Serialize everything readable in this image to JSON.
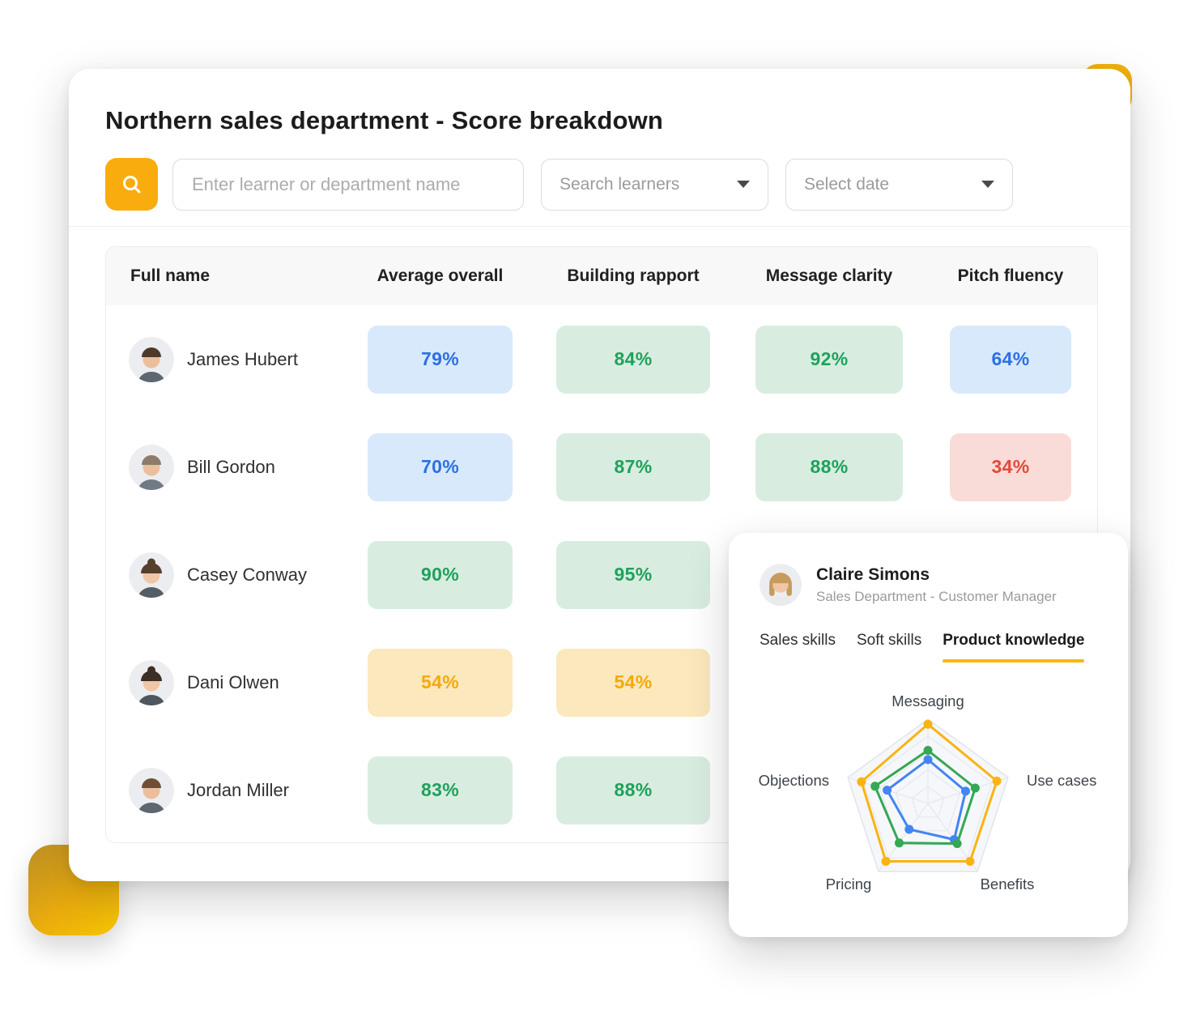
{
  "page": {
    "title": "Northern sales department - Score breakdown"
  },
  "toolbar": {
    "search_button_icon": "search-icon",
    "search_placeholder": "Enter learner or department name",
    "learners_dropdown_value": "Search learners",
    "date_dropdown_value": "Select date"
  },
  "colors": {
    "accent_yellow": "#F9AC0D",
    "tab_underline": "#FBB70F",
    "badge_tones": {
      "blue": {
        "bg": "#D8E9FB",
        "text": "#2B6FE4"
      },
      "green": {
        "bg": "#D8EDE0",
        "text": "#1FA15C"
      },
      "red": {
        "bg": "#F9DCD7",
        "text": "#E24A3B"
      },
      "yellow": {
        "bg": "#FBE8BC",
        "text": "#F4A90B"
      }
    }
  },
  "table": {
    "headers": [
      "Full name",
      "Average overall",
      "Building rapport",
      "Message clarity",
      "Pitch fluency"
    ],
    "rows": [
      {
        "name": "James Hubert",
        "avatar": {
          "style": "short",
          "hair": "#4E3A2B",
          "skin": "#EBBE9D",
          "shirt": "#5E6670"
        },
        "scores": [
          {
            "value": "79%",
            "tone": "blue"
          },
          {
            "value": "84%",
            "tone": "green"
          },
          {
            "value": "92%",
            "tone": "green"
          },
          {
            "value": "64%",
            "tone": "blue"
          }
        ]
      },
      {
        "name": "Bill Gordon",
        "avatar": {
          "style": "short",
          "hair": "#8C7B6B",
          "skin": "#EBBE9D",
          "shirt": "#717A84"
        },
        "scores": [
          {
            "value": "70%",
            "tone": "blue"
          },
          {
            "value": "87%",
            "tone": "green"
          },
          {
            "value": "88%",
            "tone": "green"
          },
          {
            "value": "34%",
            "tone": "red"
          }
        ]
      },
      {
        "name": "Casey Conway",
        "avatar": {
          "style": "bun",
          "hair": "#553F2F",
          "skin": "#F0C6A6",
          "shirt": "#555D66"
        },
        "scores": [
          {
            "value": "90%",
            "tone": "green"
          },
          {
            "value": "95%",
            "tone": "green"
          },
          null,
          null
        ]
      },
      {
        "name": "Dani Olwen",
        "avatar": {
          "style": "bun",
          "hair": "#3E2E28",
          "skin": "#F0C6A6",
          "shirt": "#4E565F"
        },
        "scores": [
          {
            "value": "54%",
            "tone": "yellow"
          },
          {
            "value": "54%",
            "tone": "yellow"
          },
          null,
          null
        ]
      },
      {
        "name": "Jordan Miller",
        "avatar": {
          "style": "short",
          "hair": "#6E4F35",
          "skin": "#EBBE9D",
          "shirt": "#5E6670"
        },
        "scores": [
          {
            "value": "83%",
            "tone": "green"
          },
          {
            "value": "88%",
            "tone": "green"
          },
          null,
          null
        ]
      }
    ]
  },
  "profile_card": {
    "name": "Claire Simons",
    "subtitle": "Sales Department - Customer Manager",
    "avatar": {
      "style": "long",
      "hair": "#C79B5C",
      "skin": "#F0C6A6",
      "shirt": "#E9EAEC"
    },
    "tabs": [
      {
        "label": "Sales skills",
        "active": false
      },
      {
        "label": "Soft skills",
        "active": false
      },
      {
        "label": "Product knowledge",
        "active": true
      }
    ]
  },
  "chart_data": {
    "type": "radar",
    "categories": [
      "Messaging",
      "Use cases",
      "Benefits",
      "Pricing",
      "Objections"
    ],
    "axis_max": 100,
    "grid_levels": 5,
    "grid": true,
    "legend": "none",
    "series": [
      {
        "name": "yellow-series",
        "color": "#FBB311",
        "values": [
          94,
          86,
          85,
          85,
          83
        ]
      },
      {
        "name": "green-series",
        "color": "#34A853",
        "values": [
          63,
          59,
          59,
          58,
          66
        ]
      },
      {
        "name": "blue-series",
        "color": "#4285F4",
        "values": [
          52,
          47,
          53,
          38,
          51
        ]
      }
    ]
  }
}
